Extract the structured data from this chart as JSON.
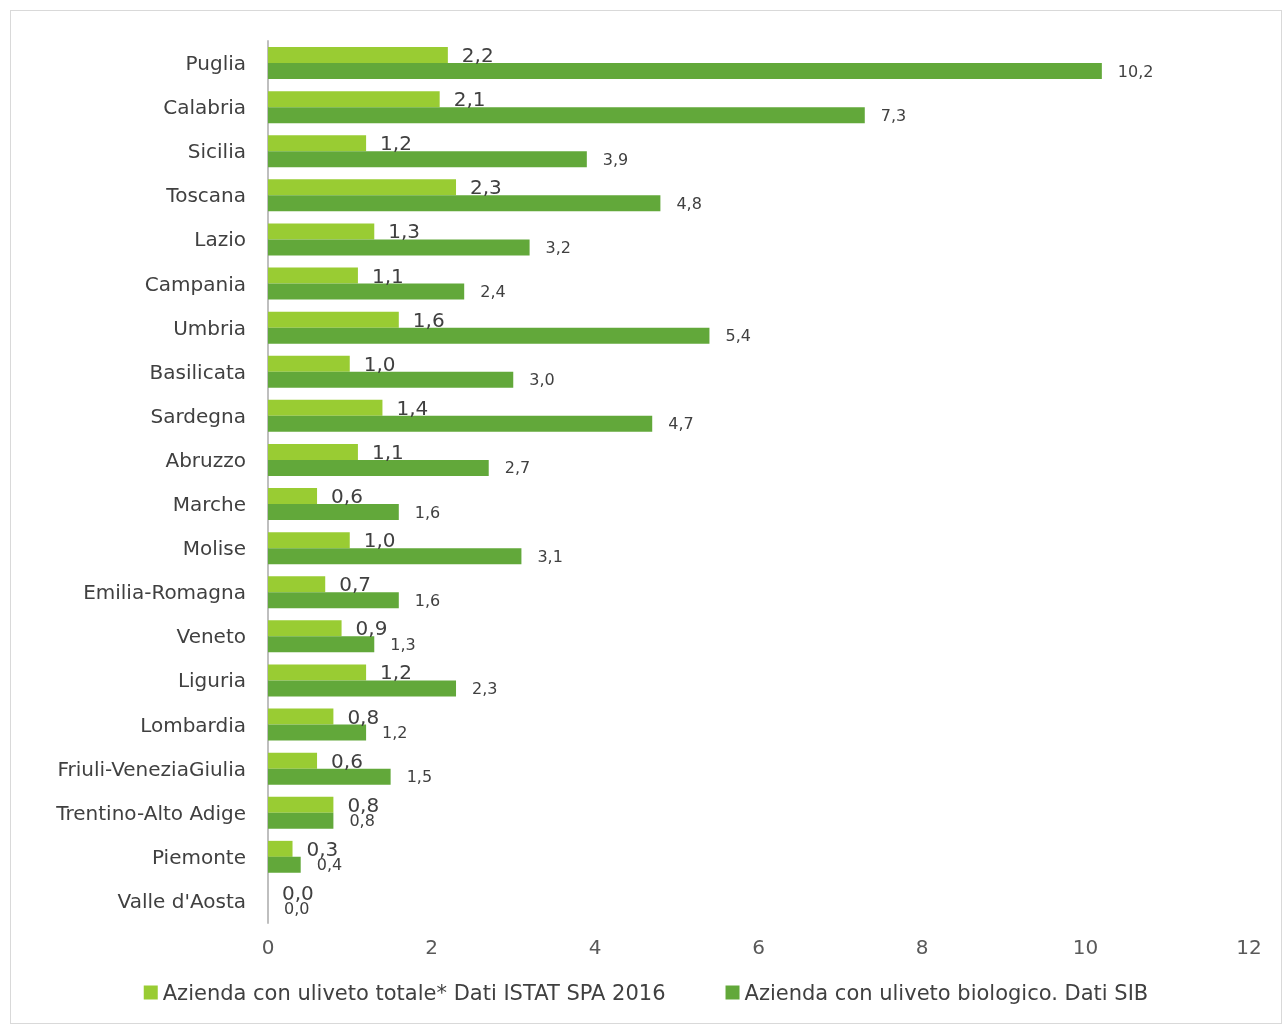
{
  "chart_data": {
    "type": "bar",
    "orientation": "horizontal",
    "categories": [
      "Puglia",
      "Calabria",
      "Sicilia",
      "Toscana",
      "Lazio",
      "Campania",
      "Umbria",
      "Basilicata",
      "Sardegna",
      "Abruzzo",
      "Marche",
      "Molise",
      "Emilia-Romagna",
      "Veneto",
      "Liguria",
      "Lombardia",
      "Friuli-VeneziaGiulia",
      "Trentino-Alto Adige",
      "Piemonte",
      "Valle d'Aosta"
    ],
    "series": [
      {
        "name": "Azienda con uliveto totale* Dati ISTAT SPA 2016",
        "color": "#99cc33",
        "values": [
          2.2,
          2.1,
          1.2,
          2.3,
          1.3,
          1.1,
          1.6,
          1.0,
          1.4,
          1.1,
          0.6,
          1.0,
          0.7,
          0.9,
          1.2,
          0.8,
          0.6,
          0.8,
          0.3,
          0.0
        ],
        "value_labels": [
          "2,2",
          "2,1",
          "1,2",
          "2,3",
          "1,3",
          "1,1",
          "1,6",
          "1,0",
          "1,4",
          "1,1",
          "0,6",
          "1,0",
          "0,7",
          "0,9",
          "1,2",
          "0,8",
          "0,6",
          "0,8",
          "0,3",
          "0,0"
        ]
      },
      {
        "name": "Azienda con uliveto biologico. Dati SIB",
        "color": "#62a83a",
        "values": [
          10.2,
          7.3,
          3.9,
          4.8,
          3.2,
          2.4,
          5.4,
          3.0,
          4.7,
          2.7,
          1.6,
          3.1,
          1.6,
          1.3,
          2.3,
          1.2,
          1.5,
          0.8,
          0.4,
          0.0
        ],
        "value_labels": [
          "10,2",
          "7,3",
          "3,9",
          "4,8",
          "3,2",
          "2,4",
          "5,4",
          "3,0",
          "4,7",
          "2,7",
          "1,6",
          "3,1",
          "1,6",
          "1,3",
          "2,3",
          "1,2",
          "1,5",
          "0,8",
          "0,4",
          "0,0"
        ]
      }
    ],
    "xlim": [
      0,
      12
    ],
    "xticks": [
      0,
      2,
      4,
      6,
      8,
      10,
      12
    ],
    "grid": false,
    "legend": "bottom"
  }
}
